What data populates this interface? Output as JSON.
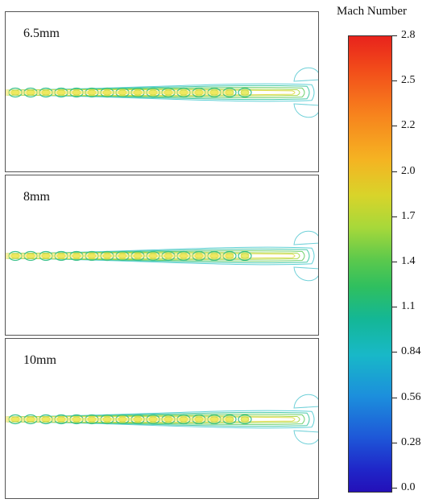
{
  "panels": [
    {
      "label": "6.5mm"
    },
    {
      "label": "8mm"
    },
    {
      "label": "10mm"
    }
  ],
  "colorbar": {
    "title": "Mach Number",
    "ticks": [
      "2.8",
      "2.5",
      "2.2",
      "2.0",
      "1.7",
      "1.4",
      "1.1",
      "0.84",
      "0.56",
      "0.28",
      "0.0"
    ],
    "colors": [
      "#e8231c",
      "#f7821d",
      "#d8d42a",
      "#5cc94c",
      "#14b795",
      "#18b8c8",
      "#1e58d8",
      "#2410b8"
    ]
  }
}
